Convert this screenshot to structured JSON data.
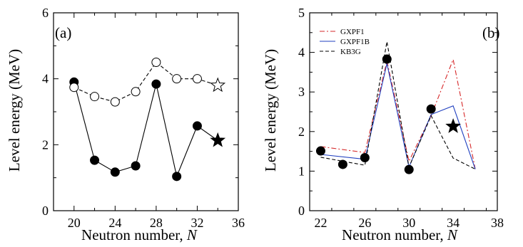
{
  "chart_data": [
    {
      "type": "scatter",
      "panel_label": "(a)",
      "xlabel": "Neutron number, ",
      "xlabel_var": "N",
      "ylabel": "Level energy (MeV)",
      "xlim": [
        18,
        36
      ],
      "ylim": [
        0,
        6
      ],
      "xticks": [
        20,
        24,
        28,
        32,
        36
      ],
      "yticks": [
        0,
        2,
        4,
        6
      ],
      "legend": "none",
      "series": [
        {
          "marker": "filled-circle",
          "line": "solid",
          "color": "#000000",
          "x": [
            20,
            22,
            24,
            26,
            28,
            30,
            32,
            34
          ],
          "y": [
            3.9,
            1.53,
            1.17,
            1.36,
            3.84,
            1.04,
            2.57,
            2.13
          ],
          "last_marker": "filled-star"
        },
        {
          "marker": "open-circle",
          "line": "dashed",
          "color": "#000000",
          "x": [
            20,
            22,
            24,
            26,
            28,
            30,
            32,
            34
          ],
          "y": [
            3.74,
            3.46,
            3.3,
            3.61,
            4.5,
            4.0,
            4.0,
            3.8
          ],
          "last_marker": "open-star"
        }
      ]
    },
    {
      "type": "line",
      "panel_label": "(b)",
      "xlabel": "Neutron number, ",
      "xlabel_var": "N",
      "ylabel": "Level energy (MeV)",
      "xlim": [
        21,
        38
      ],
      "ylim": [
        0,
        5
      ],
      "xticks": [
        22,
        26,
        30,
        34,
        38
      ],
      "yticks": [
        0,
        1,
        2,
        3,
        4,
        5
      ],
      "legend": "top-left",
      "series": [
        {
          "name": "GXPF1",
          "line": "dashdot",
          "color": "#d62728",
          "x": [
            22,
            26,
            28,
            30,
            32,
            34,
            36
          ],
          "y": [
            1.62,
            1.47,
            3.78,
            1.25,
            2.4,
            3.82,
            1.05
          ]
        },
        {
          "name": "GXPF1B",
          "line": "solid",
          "color": "#1f3fbf",
          "x": [
            22,
            26,
            28,
            30,
            32,
            34,
            36
          ],
          "y": [
            1.42,
            1.3,
            3.72,
            1.1,
            2.43,
            2.65,
            1.05
          ]
        },
        {
          "name": "KB3G",
          "line": "dashed",
          "color": "#000000",
          "x": [
            22,
            26,
            28,
            30,
            32,
            34,
            36
          ],
          "y": [
            1.35,
            1.15,
            4.27,
            1.1,
            2.4,
            1.33,
            1.05
          ]
        },
        {
          "marker": "filled-circle",
          "line": "none",
          "color": "#000000",
          "x": [
            22,
            24,
            26,
            28,
            30,
            32
          ],
          "y": [
            1.51,
            1.17,
            1.34,
            3.83,
            1.04,
            2.57
          ]
        },
        {
          "marker": "filled-star",
          "line": "none",
          "color": "#000000",
          "x": [
            34
          ],
          "y": [
            2.13
          ]
        }
      ]
    }
  ]
}
